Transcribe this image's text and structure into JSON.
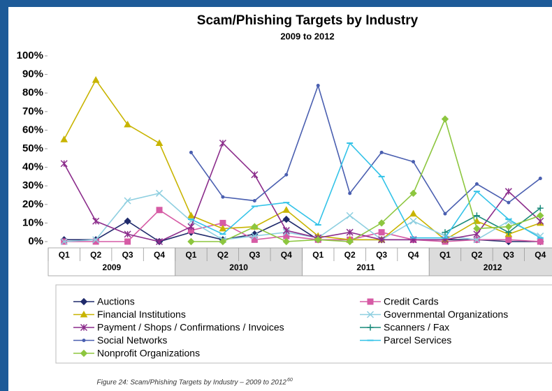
{
  "chart_data": {
    "type": "line",
    "title": "Scam/Phishing Targets by Industry",
    "subtitle": "2009 to 2012",
    "categories": [
      "Q1",
      "Q2",
      "Q3",
      "Q4",
      "Q1",
      "Q2",
      "Q3",
      "Q4",
      "Q1",
      "Q2",
      "Q3",
      "Q4",
      "Q1",
      "Q2",
      "Q3",
      "Q4"
    ],
    "groups": [
      "2009",
      "2010",
      "2011",
      "2012"
    ],
    "ylim": [
      0,
      100
    ],
    "yticks": [
      {
        "value": 0,
        "label": "0%"
      },
      {
        "value": 10,
        "label": "10%"
      },
      {
        "value": 20,
        "label": "20%"
      },
      {
        "value": 30,
        "label": "30%"
      },
      {
        "value": 40,
        "label": "40%"
      },
      {
        "value": 50,
        "label": "50%"
      },
      {
        "value": 60,
        "label": "60%"
      },
      {
        "value": 70,
        "label": "70%"
      },
      {
        "value": 80,
        "label": "80%"
      },
      {
        "value": 90,
        "label": "90%"
      },
      {
        "value": 100,
        "label": "100%"
      }
    ],
    "grid": false,
    "series": [
      {
        "name": "Auctions",
        "color": "#1f2a6b",
        "marker": "diamond",
        "values": [
          1,
          1,
          11,
          0,
          5,
          1,
          4,
          12,
          1,
          1,
          1,
          1,
          1,
          1,
          0,
          0
        ]
      },
      {
        "name": "Credit Cards",
        "color": "#d65ba5",
        "marker": "square",
        "values": [
          0,
          0,
          0,
          17,
          6,
          10,
          1,
          3,
          1,
          1,
          5,
          1,
          0,
          1,
          1,
          0
        ]
      },
      {
        "name": "Financial Institutions",
        "color": "#c8b400",
        "marker": "triangle",
        "values": [
          55,
          87,
          63,
          53,
          14,
          7,
          8,
          17,
          3,
          1,
          1,
          15,
          1,
          11,
          4,
          10
        ]
      },
      {
        "name": "Governmental Organizations",
        "color": "#8ecfe0",
        "marker": "x",
        "values": [
          0,
          1,
          22,
          26,
          11,
          1,
          3,
          5,
          2,
          14,
          1,
          11,
          3,
          1,
          11,
          3
        ]
      },
      {
        "name": "Payment / Shops / Confirmations / Invoices",
        "color": "#8b2c8b",
        "marker": "star",
        "values": [
          42,
          11,
          4,
          0,
          8,
          53,
          36,
          6,
          2,
          5,
          1,
          1,
          1,
          4,
          27,
          11
        ]
      },
      {
        "name": "Scanners / Fax",
        "color": "#1a8a7a",
        "marker": "plus",
        "values": [
          null,
          null,
          null,
          null,
          null,
          null,
          null,
          null,
          null,
          null,
          null,
          null,
          5,
          14,
          5,
          18
        ]
      },
      {
        "name": "Social Networks",
        "color": "#4a5fb0",
        "marker": "dot",
        "values": [
          null,
          null,
          null,
          null,
          48,
          24,
          22,
          36,
          84,
          26,
          48,
          43,
          15,
          31,
          21,
          34
        ]
      },
      {
        "name": "Parcel Services",
        "color": "#33c3e8",
        "marker": "dash",
        "values": [
          null,
          null,
          null,
          null,
          12,
          4,
          19,
          21,
          9,
          53,
          35,
          2,
          2,
          27,
          12,
          2
        ]
      },
      {
        "name": "Nonprofit Organizations",
        "color": "#8dc63f",
        "marker": "diamond",
        "values": [
          null,
          null,
          null,
          null,
          0,
          0,
          8,
          0,
          1,
          0,
          10,
          26,
          66,
          7,
          8,
          14
        ]
      }
    ],
    "caption": "Figure 24: Scam/Phishing Targets by Industry – 2009 to 2012",
    "caption_ref": "60"
  }
}
